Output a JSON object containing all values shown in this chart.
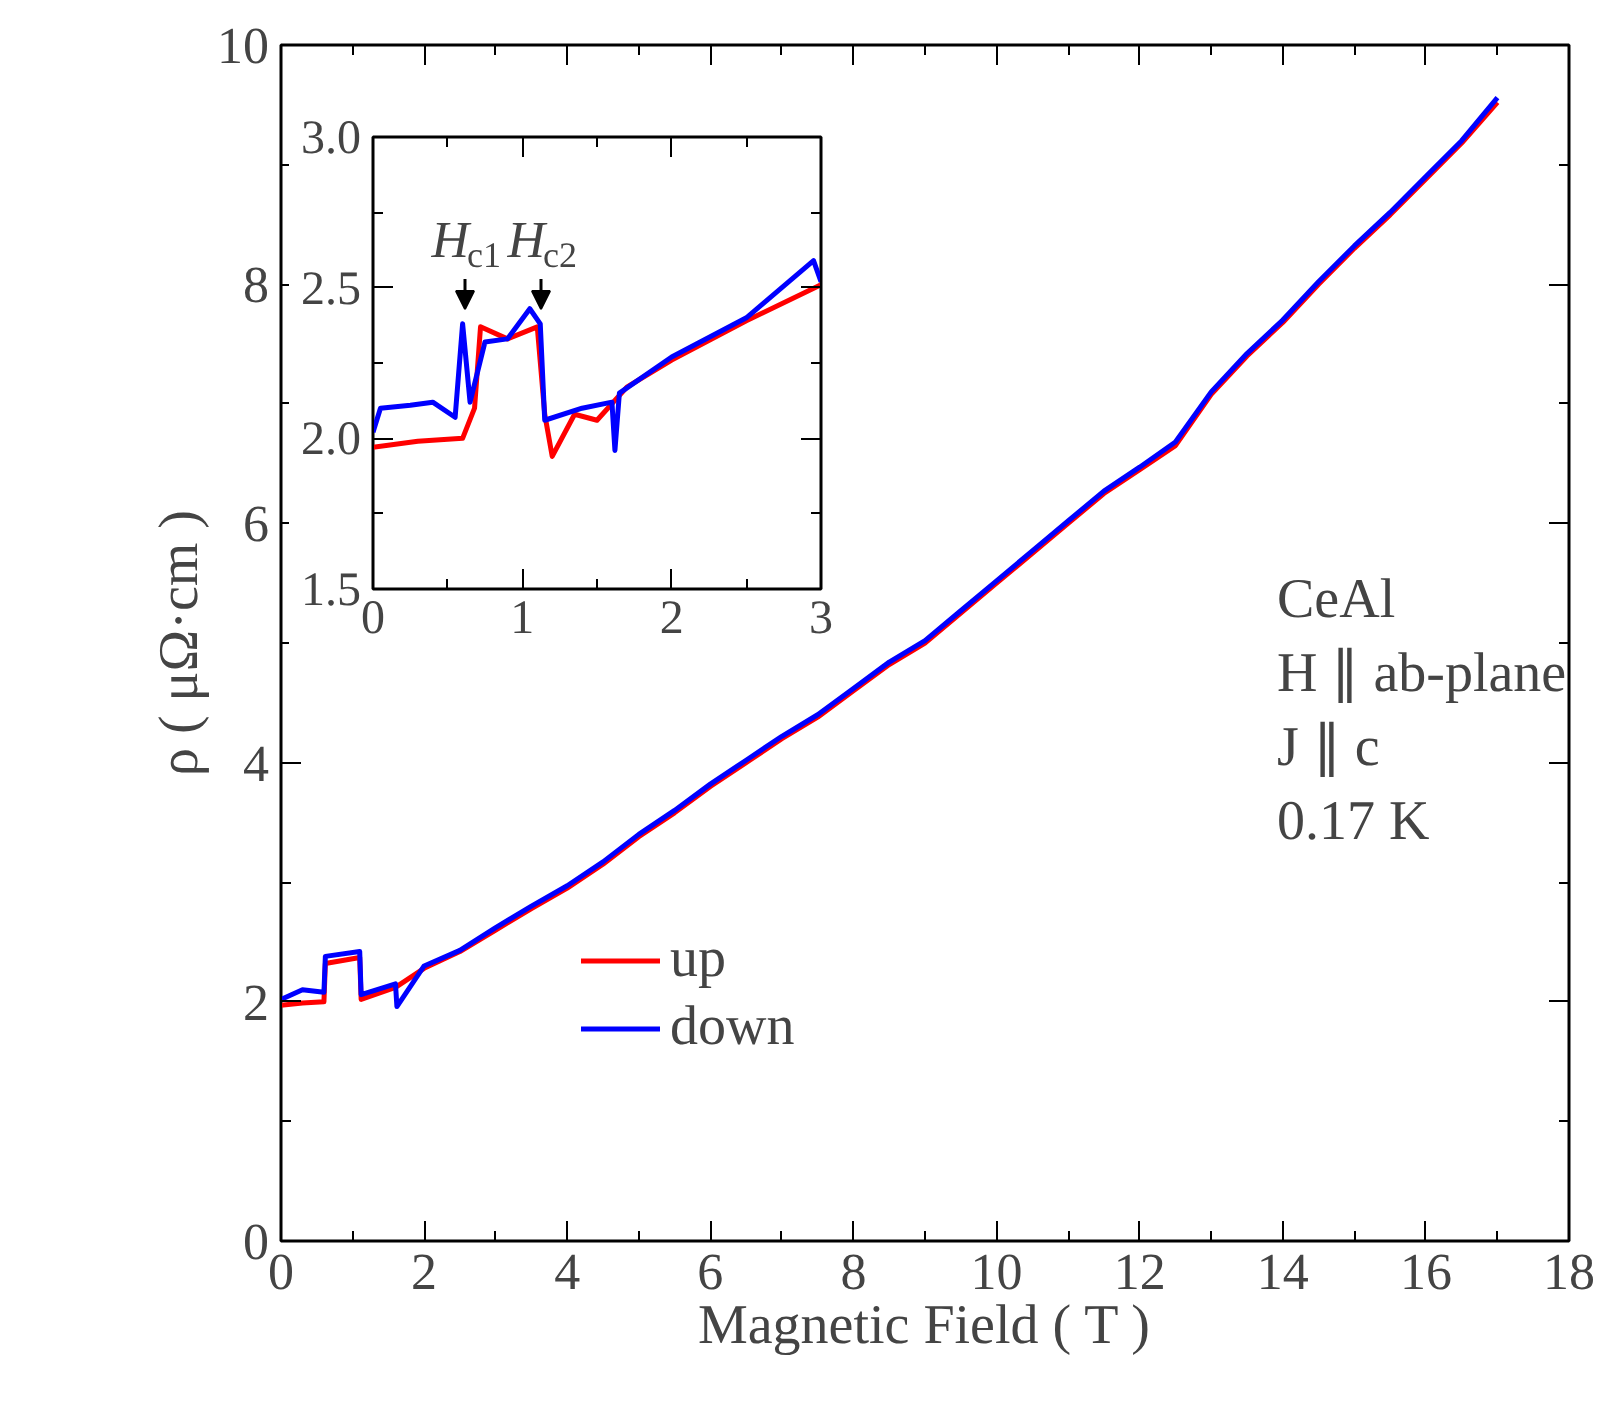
{
  "chart_data": [
    {
      "type": "line",
      "xlabel": "Magnetic Field ( T )",
      "ylabel": "ρ ( μΩ·cm )",
      "xlim": [
        0,
        18
      ],
      "ylim": [
        0,
        10
      ],
      "xticks": [
        0,
        {
          "value": 1,
          "label": null
        },
        2,
        {
          "value": 3,
          "label": null
        },
        4,
        {
          "value": 5,
          "label": null
        },
        6,
        {
          "value": 7,
          "label": null
        },
        8,
        {
          "value": 9,
          "label": null
        },
        10,
        {
          "value": 11,
          "label": null
        },
        12,
        {
          "value": 13,
          "label": null
        },
        14,
        {
          "value": 15,
          "label": null
        },
        16,
        {
          "value": 17,
          "label": null
        },
        18
      ],
      "yticks": [
        0,
        {
          "value": 1,
          "label": null
        },
        2,
        {
          "value": 3,
          "label": null
        },
        4,
        {
          "value": 5,
          "label": null
        },
        6,
        {
          "value": 7,
          "label": null
        },
        8,
        {
          "value": 9,
          "label": null
        },
        10
      ],
      "grid": false,
      "legend": "bottom",
      "line_style": "solid",
      "marker": "none",
      "annotations": [
        "CeAl",
        "H ∥ ab-plane",
        "J ∥ c",
        "0.17 K"
      ],
      "series": [
        {
          "name": "up",
          "color": "#ff0000",
          "x": [
            0,
            0.3,
            0.6,
            0.62,
            1.1,
            1.12,
            1.6,
            2,
            2.5,
            3,
            3.5,
            4,
            4.5,
            5,
            5.5,
            6,
            6.5,
            7,
            7.5,
            8,
            8.5,
            9,
            9.5,
            10,
            10.5,
            11,
            11.5,
            12,
            12.5,
            13,
            13.5,
            14,
            14.5,
            15,
            15.5,
            16,
            16.5,
            17
          ],
          "values": [
            1.97,
            1.99,
            2.0,
            2.32,
            2.37,
            2.02,
            2.12,
            2.28,
            2.42,
            2.6,
            2.78,
            2.95,
            3.15,
            3.38,
            3.58,
            3.8,
            4.0,
            4.2,
            4.38,
            4.6,
            4.82,
            5.0,
            5.25,
            5.5,
            5.75,
            6.0,
            6.25,
            6.45,
            6.65,
            7.08,
            7.4,
            7.68,
            8.0,
            8.3,
            8.58,
            8.88,
            9.18,
            9.52
          ]
        },
        {
          "name": "down",
          "color": "#0000ff",
          "x": [
            0,
            0.3,
            0.6,
            0.62,
            1.1,
            1.12,
            1.6,
            1.62,
            2,
            2.5,
            3,
            3.5,
            4,
            4.5,
            5,
            5.5,
            6,
            6.5,
            7,
            7.5,
            8,
            8.5,
            9,
            9.5,
            10,
            10.5,
            11,
            11.5,
            12,
            12.5,
            13,
            13.5,
            14,
            14.5,
            15,
            15.5,
            16,
            16.5,
            17
          ],
          "values": [
            2.02,
            2.1,
            2.08,
            2.38,
            2.42,
            2.06,
            2.15,
            1.96,
            2.3,
            2.43,
            2.62,
            2.8,
            2.97,
            3.17,
            3.4,
            3.6,
            3.82,
            4.02,
            4.22,
            4.4,
            4.62,
            4.84,
            5.02,
            5.27,
            5.52,
            5.77,
            6.02,
            6.27,
            6.47,
            6.68,
            7.1,
            7.42,
            7.7,
            8.02,
            8.32,
            8.6,
            8.9,
            9.2,
            9.56
          ]
        }
      ]
    },
    {
      "type": "line",
      "xlim": [
        0,
        3
      ],
      "ylim": [
        1.5,
        3.0
      ],
      "xticks": [
        0,
        {
          "value": 0.5,
          "label": null
        },
        1,
        {
          "value": 1.5,
          "label": null
        },
        2,
        {
          "value": 2.5,
          "label": null
        },
        3
      ],
      "yticks": [
        {
          "value": 1.5,
          "label": "1.5"
        },
        {
          "value": 1.75,
          "label": null
        },
        {
          "value": 2.0,
          "label": "2.0"
        },
        {
          "value": 2.25,
          "label": null
        },
        {
          "value": 2.5,
          "label": "2.5"
        },
        {
          "value": 2.75,
          "label": null
        },
        {
          "value": 3.0,
          "label": "3.0"
        }
      ],
      "grid": false,
      "legend": false,
      "line_style": "solid",
      "marker": "none",
      "annotations": [
        "H$_{c1}$",
        "H$_{c2}$"
      ],
      "series": [
        {
          "color": "#ff0000",
          "x": [
            0,
            0.3,
            0.6,
            0.68,
            0.72,
            0.9,
            1.1,
            1.15,
            1.2,
            1.35,
            1.5,
            1.7,
            2,
            2.5,
            3
          ],
          "values": [
            1.97,
            1.99,
            2.0,
            2.1,
            2.37,
            2.33,
            2.37,
            2.08,
            1.94,
            2.08,
            2.06,
            2.17,
            2.26,
            2.39,
            2.51
          ]
        },
        {
          "color": "#0000ff",
          "x": [
            0,
            0.05,
            0.25,
            0.4,
            0.55,
            0.6,
            0.65,
            0.75,
            0.9,
            1.05,
            1.12,
            1.15,
            1.4,
            1.6,
            1.62,
            1.65,
            2,
            2.5,
            2.95,
            3
          ],
          "values": [
            2.02,
            2.1,
            2.11,
            2.12,
            2.07,
            2.38,
            2.12,
            2.32,
            2.33,
            2.43,
            2.38,
            2.06,
            2.1,
            2.12,
            1.96,
            2.15,
            2.27,
            2.4,
            2.59,
            2.52
          ]
        }
      ]
    }
  ]
}
